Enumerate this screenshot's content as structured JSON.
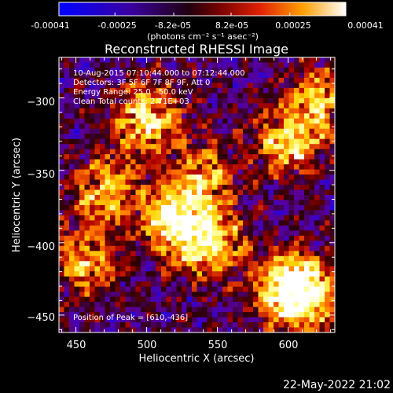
{
  "window": {
    "title": "Reconstructed RHESSI Image",
    "date_stamp": "22-May-2022 21:02"
  },
  "colorbar": {
    "tick_labels": [
      "-0.00041",
      "-0.00025",
      "-8.2e-05",
      "8.2e-05",
      "0.00025",
      "0.00041"
    ],
    "tick_values": [
      -0.00041,
      -0.00025,
      -8.2e-05,
      8.2e-05,
      0.00025,
      0.00041
    ],
    "range": [
      -0.00041,
      0.00041
    ],
    "unit_label": "(photons cm⁻² s⁻¹ asec⁻²)"
  },
  "annotations": {
    "time_range": "10-Aug-2015 07:10:44.000 to 07:12:44.000",
    "detectors": "Detectors: 3F 5F 6F 7F 8F 9F, Att 0",
    "energy_range": "Energy Range: 25.0 - 50.0 keV",
    "clean_total": "Clean     Total counts: 2.71E+03",
    "peak_position": "Position of Peak = [610,-436]"
  },
  "chart_data": {
    "type": "heatmap",
    "title": "Reconstructed RHESSI Image",
    "xlabel": "Heliocentric X (arcsec)",
    "ylabel": "Heliocentric Y (arcsec)",
    "xlim": [
      438,
      633
    ],
    "ylim": [
      -462,
      -272
    ],
    "x_ticks": [
      450,
      500,
      550,
      600
    ],
    "y_ticks": [
      -300,
      -350,
      -400,
      -450
    ],
    "x_tick_labels": [
      "450",
      "500",
      "550",
      "600"
    ],
    "y_tick_labels": [
      "−300",
      "−350",
      "−400",
      "−450"
    ],
    "colormap": [
      "#0000ff",
      "#3a00c8",
      "#5a0096",
      "#2a0000",
      "#b00000",
      "#ff6a00",
      "#ffd000",
      "#ffff80",
      "#ffffff"
    ],
    "peak_position": [
      610,
      -436
    ],
    "hotspots": [
      {
        "x": 500,
        "y": -315,
        "strength": 0.9
      },
      {
        "x": 520,
        "y": -385,
        "strength": 1.0
      },
      {
        "x": 470,
        "y": -365,
        "strength": 0.7
      },
      {
        "x": 545,
        "y": -400,
        "strength": 0.8
      },
      {
        "x": 600,
        "y": -330,
        "strength": 0.8
      },
      {
        "x": 625,
        "y": -300,
        "strength": 0.7
      },
      {
        "x": 455,
        "y": -415,
        "strength": 0.6
      },
      {
        "x": 600,
        "y": -430,
        "strength": 0.8
      },
      {
        "x": 610,
        "y": -436,
        "strength": 0.9
      },
      {
        "x": 540,
        "y": -355,
        "strength": 0.6
      }
    ]
  }
}
